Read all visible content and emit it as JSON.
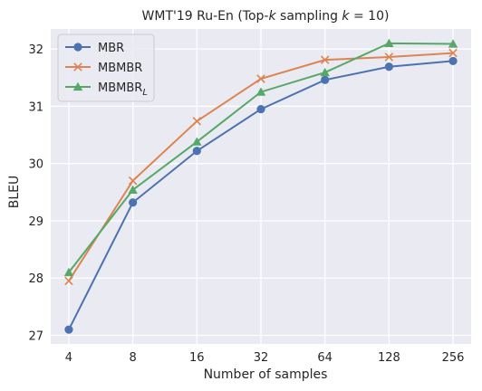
{
  "chart_data": {
    "type": "line",
    "title": "WMT'19 Ru-En (Top-k sampling k = 10)",
    "title_parts": {
      "pre": "WMT'19 Ru-En (Top-",
      "k": "k",
      "mid": " sampling ",
      "k2": "k",
      "post": " = 10)"
    },
    "xlabel": "Number of samples",
    "ylabel": "BLEU",
    "x": [
      "4",
      "8",
      "16",
      "32",
      "64",
      "128",
      "256"
    ],
    "ylim": [
      26.85,
      32.35
    ],
    "yticks": [
      "27",
      "28",
      "29",
      "30",
      "31",
      "32"
    ],
    "grid": true,
    "legend_position": "top-left",
    "background": "#eaeaf2",
    "series": [
      {
        "name": "MBR",
        "name_base": "MBR",
        "name_sub": "",
        "color": "#4c72b0",
        "marker": "circle",
        "values": [
          27.1,
          29.32,
          30.22,
          30.95,
          31.46,
          31.69,
          31.79
        ]
      },
      {
        "name": "MBMBR",
        "name_base": "MBMBR",
        "name_sub": "",
        "color": "#dd8452",
        "marker": "x",
        "values": [
          27.95,
          29.7,
          30.74,
          31.48,
          31.81,
          31.86,
          31.93
        ]
      },
      {
        "name": "MBMBR_L",
        "name_base": "MBMBR",
        "name_sub": "L",
        "color": "#55a868",
        "marker": "triangle",
        "values": [
          28.1,
          29.54,
          30.38,
          31.25,
          31.59,
          32.1,
          32.09
        ]
      }
    ]
  }
}
